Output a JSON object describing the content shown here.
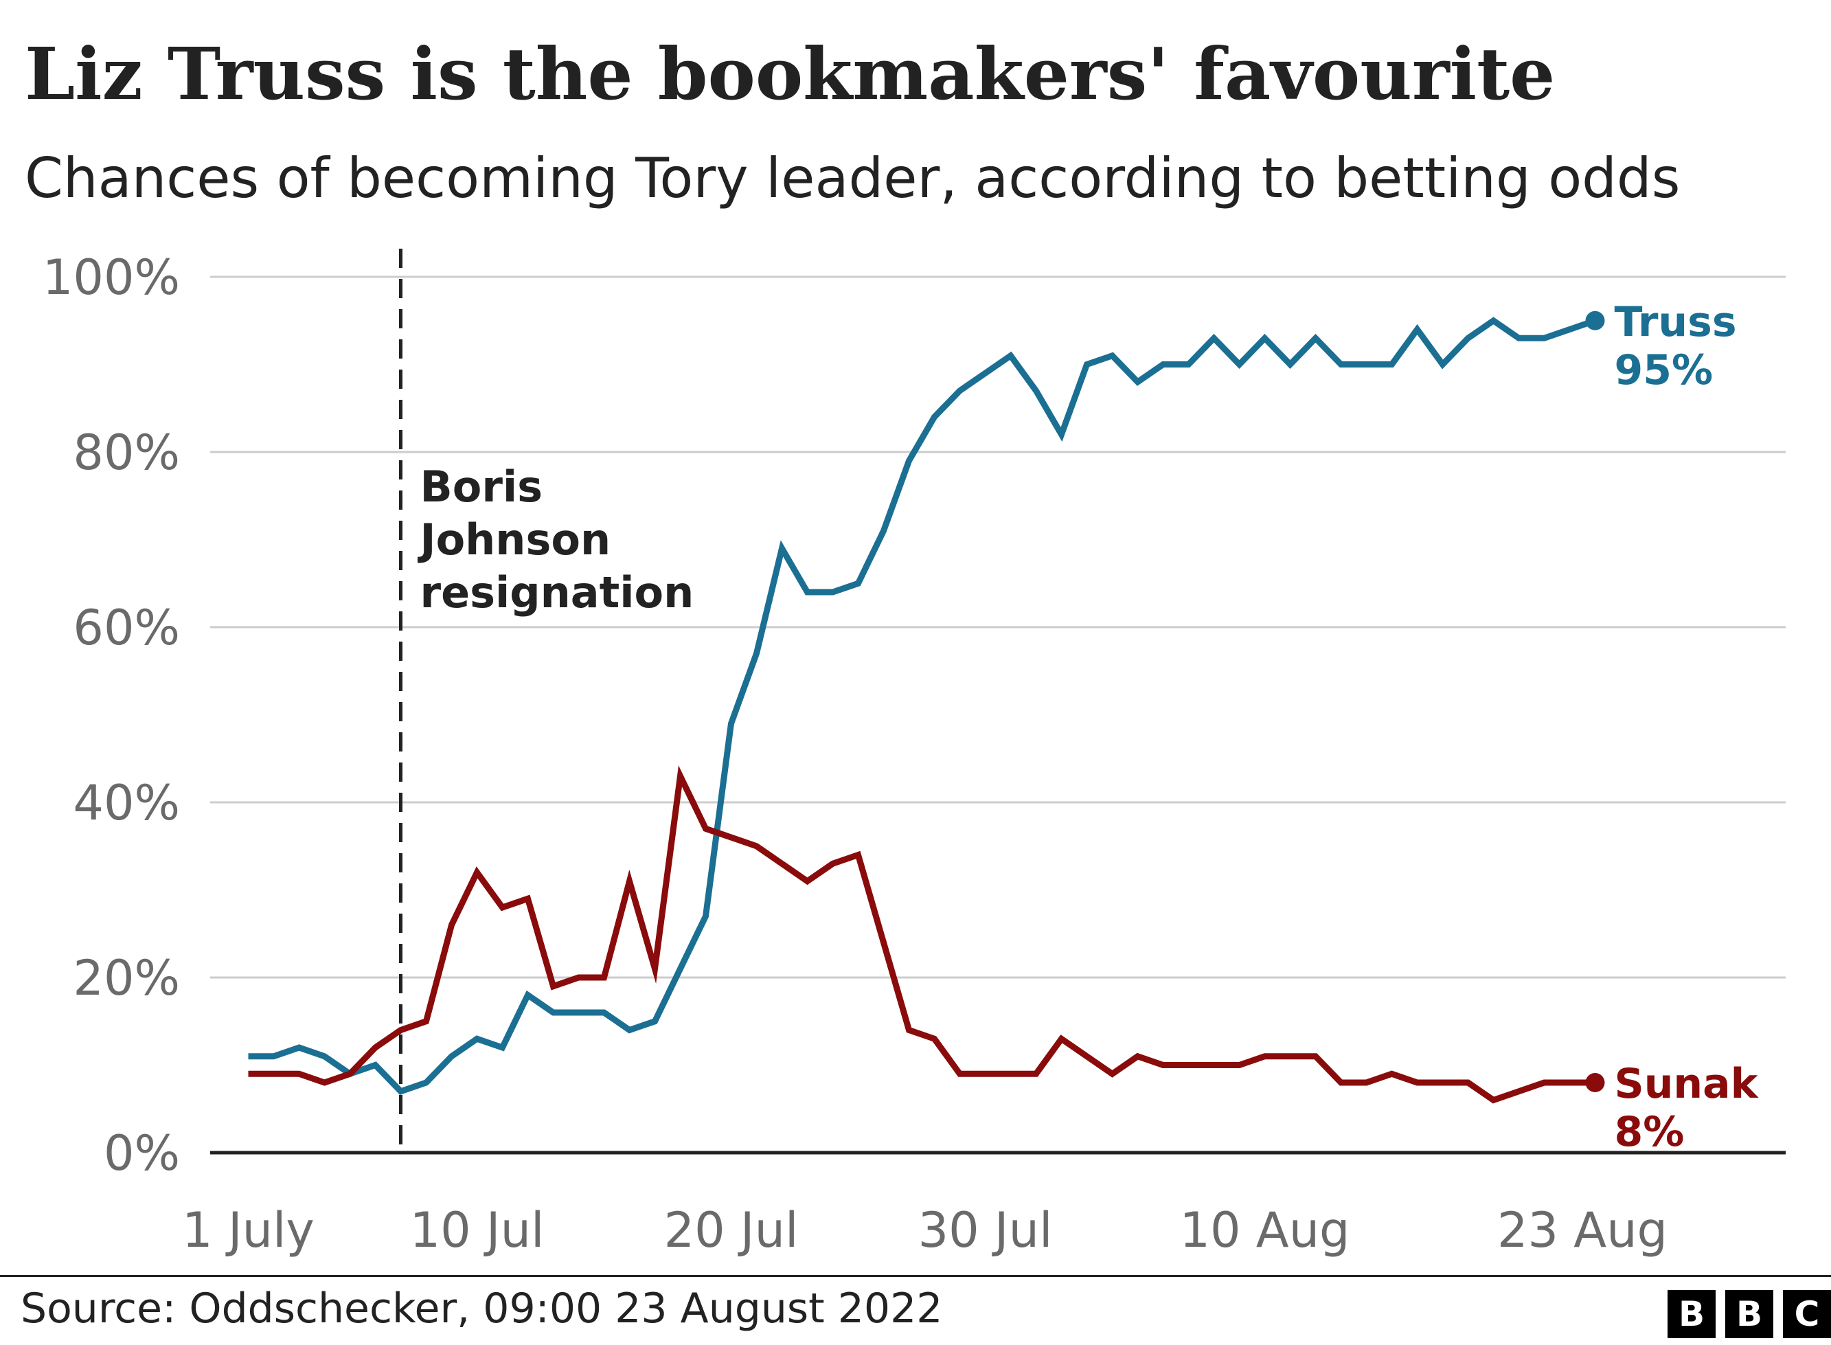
{
  "title": "Liz Truss is the bookmakers' favourite",
  "subtitle": "Chances of becoming Tory leader, according to betting odds",
  "source": "Source: Oddschecker, 09:00 23 August 2022",
  "logo": {
    "letters": [
      "B",
      "B",
      "C"
    ]
  },
  "chart_data": {
    "type": "line",
    "title": "Liz Truss is the bookmakers' favourite",
    "subtitle": "Chances of becoming Tory leader, according to betting odds",
    "xlabel": "",
    "ylabel": "",
    "x_unit": "day of period (day 0 = 1 July 2022)",
    "x_range": [
      -1.5,
      60.5
    ],
    "ylim": [
      0,
      100
    ],
    "y_ticks": [
      0,
      20,
      40,
      60,
      80,
      100
    ],
    "y_tick_labels": [
      "0%",
      "20%",
      "40%",
      "60%",
      "80%",
      "100%"
    ],
    "x_ticks": [
      0,
      9,
      19,
      29,
      40,
      52.5
    ],
    "x_tick_labels": [
      "1 July",
      "10 Jul",
      "20 Jul",
      "30 Jul",
      "10 Aug",
      "23 Aug"
    ],
    "grid": true,
    "annotations": [
      {
        "x": 6,
        "lines": [
          "Boris",
          "Johnson",
          "resignation"
        ]
      }
    ],
    "series": [
      {
        "name": "Truss",
        "color": "#1b6f93",
        "end_label": "Truss",
        "end_value_label": "95%",
        "x": [
          0,
          1,
          2,
          3,
          4,
          5,
          6,
          7,
          8,
          9,
          10,
          11,
          12,
          13,
          14,
          15,
          16,
          17,
          18,
          19,
          20,
          21,
          22,
          23,
          24,
          25,
          26,
          27,
          28,
          29,
          30,
          31,
          32,
          33,
          34,
          35,
          36,
          37,
          38,
          39,
          40,
          41,
          42,
          43,
          44,
          45,
          46,
          47,
          48,
          49,
          50,
          51,
          52,
          53
        ],
        "values": [
          11,
          11,
          12,
          11,
          9,
          10,
          7,
          8,
          11,
          13,
          12,
          18,
          16,
          16,
          16,
          14,
          15,
          21,
          27,
          49,
          57,
          69,
          64,
          64,
          65,
          71,
          79,
          84,
          87,
          89,
          91,
          87,
          82,
          90,
          91,
          88,
          90,
          90,
          93,
          90,
          93,
          90,
          93,
          90,
          90,
          90,
          94,
          90,
          93,
          95,
          93,
          93,
          94,
          95
        ]
      },
      {
        "name": "Sunak",
        "color": "#8a0b0b",
        "end_label": "Sunak",
        "end_value_label": "8%",
        "x": [
          0,
          1,
          2,
          3,
          4,
          5,
          6,
          7,
          8,
          9,
          10,
          11,
          12,
          13,
          14,
          15,
          15.5,
          16,
          17,
          18,
          19,
          20,
          21,
          22,
          23,
          24,
          25,
          26,
          27,
          28,
          29,
          30,
          31,
          32,
          33,
          34,
          35,
          36,
          37,
          38,
          39,
          40,
          41,
          42,
          43,
          44,
          45,
          46,
          47,
          48,
          49,
          50,
          51,
          52,
          53
        ],
        "values": [
          9,
          9,
          9,
          8,
          9,
          12,
          14,
          15,
          26,
          32,
          28,
          29,
          19,
          20,
          20,
          31,
          26,
          21,
          43,
          37,
          36,
          35,
          33,
          31,
          33,
          34,
          24,
          14,
          13,
          9,
          9,
          9,
          9,
          13,
          11,
          9,
          11,
          10,
          10,
          10,
          10,
          11,
          11,
          11,
          8,
          8,
          9,
          8,
          8,
          8,
          6,
          7,
          8,
          8,
          8
        ]
      }
    ]
  }
}
